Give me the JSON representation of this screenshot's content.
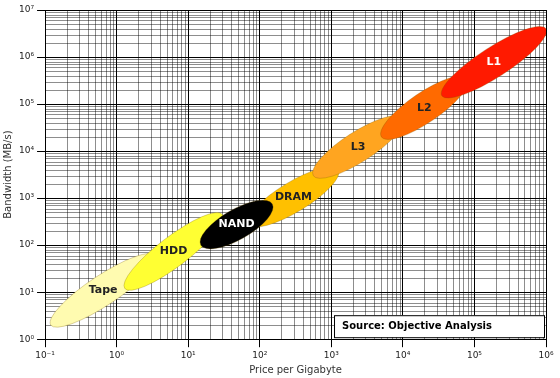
{
  "chart_data": {
    "type": "ellipse",
    "xlabel": "Price per Gigabyte",
    "ylabel": "Bandwidth (MB/s)",
    "annotations": [
      "Source: Objective Analysis"
    ],
    "log": true,
    "grid": true,
    "xlim": [
      0.1,
      1000000
    ],
    "xticks": [
      {
        "value": 0.1,
        "label": "10⁻¹"
      },
      {
        "value": 1,
        "label": "10⁰"
      },
      {
        "value": 10,
        "label": "10¹"
      },
      {
        "value": 100,
        "label": "10²"
      },
      {
        "value": 1000,
        "label": "10³"
      },
      {
        "value": 10000,
        "label": "10⁴"
      },
      {
        "value": 100000,
        "label": "10⁵"
      },
      {
        "value": 1000000,
        "label": "10⁶"
      }
    ],
    "ylim": [
      1,
      10000000
    ],
    "yticks": [
      {
        "value": 1,
        "label": "10⁰"
      },
      {
        "value": 10,
        "label": "10¹"
      },
      {
        "value": 100,
        "label": "10²"
      },
      {
        "value": 1000,
        "label": "10³"
      },
      {
        "value": 10000,
        "label": "10⁴"
      },
      {
        "value": 100000,
        "label": "10⁵"
      },
      {
        "value": 1000000,
        "label": "10⁶"
      },
      {
        "value": 10000000,
        "label": "10⁷"
      }
    ],
    "series": [
      {
        "name": "Tape",
        "color": "#fffbb0",
        "x": [
          0.12,
          3.5
        ],
        "values": [
          2,
          60
        ]
      },
      {
        "name": "HDD",
        "color": "#ffff33",
        "x": [
          1.3,
          30
        ],
        "values": [
          12,
          450
        ]
      },
      {
        "name": "DRAM",
        "color": "#ffc000",
        "x": [
          70,
          1250
        ],
        "values": [
          280,
          4000
        ]
      },
      {
        "name": "NAND",
        "color": "#000000",
        "x": [
          15,
          150
        ],
        "values": [
          100,
          750
        ]
      },
      {
        "name": "L3",
        "color": "#ffa520",
        "x": [
          560,
          10000
        ],
        "values": [
          3000,
          50000
        ]
      },
      {
        "name": "L2",
        "color": "#ff6a00",
        "x": [
          5000,
          80000
        ],
        "values": [
          20000,
          350000
        ]
      },
      {
        "name": "L1",
        "color": "#ff1a00",
        "x": [
          35000,
          1000000
        ],
        "values": [
          150000,
          4000000
        ]
      }
    ]
  }
}
